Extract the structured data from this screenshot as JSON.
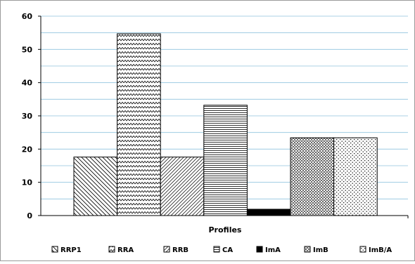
{
  "chart_data": {
    "type": "bar",
    "xlabel": "Profiles",
    "ylabel": "",
    "ylim": [
      0,
      60
    ],
    "yticks": [
      0,
      10,
      20,
      30,
      40,
      50,
      60
    ],
    "gridlines": true,
    "legend_position": "bottom",
    "categories": [
      "RRP1",
      "RRA",
      "RRB",
      "CA",
      "ImA",
      "ImB",
      "ImB/A"
    ],
    "values": [
      17.6,
      54.7,
      17.6,
      33.2,
      1.9,
      23.4,
      23.4
    ],
    "patterns": [
      "diag-back",
      "zigzag",
      "diag-fwd",
      "horizontal",
      "solid-black",
      "dots-dense",
      "dots-sparse"
    ]
  }
}
